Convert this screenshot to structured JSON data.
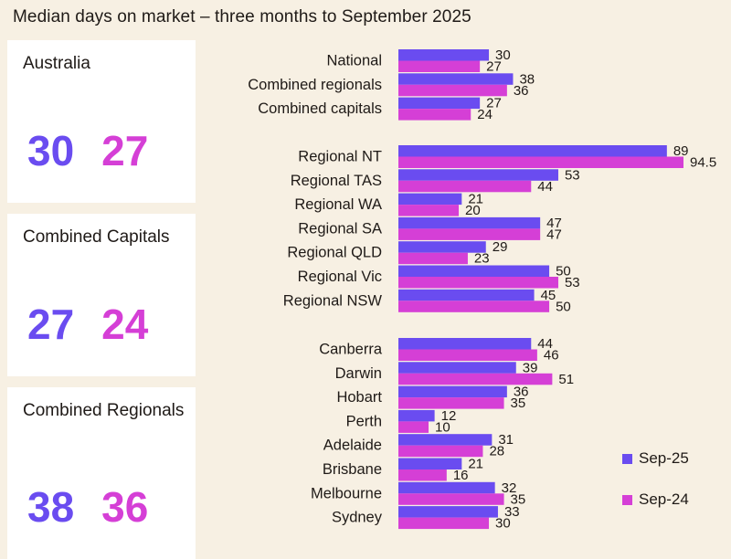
{
  "title": "Median days on market – three months to September 2025",
  "colors": {
    "sep25": "#6a4cf0",
    "sep24": "#d53fd6"
  },
  "cards": [
    {
      "label": "Australia",
      "sep25": "30",
      "sep24": "27"
    },
    {
      "label": "Combined Capitals",
      "sep25": "27",
      "sep24": "24"
    },
    {
      "label": "Combined Regionals",
      "sep25": "38",
      "sep24": "36"
    }
  ],
  "legend": [
    {
      "name": "Sep-25",
      "color": "#6a4cf0"
    },
    {
      "name": "Sep-24",
      "color": "#d53fd6"
    }
  ],
  "chart_data": {
    "type": "bar",
    "orientation": "horizontal",
    "title": "Median days on market – three months to September 2025",
    "legend_position": "bottom-right",
    "grid": false,
    "groups": [
      [
        "National",
        "Combined regionals",
        "Combined capitals"
      ],
      [
        "Regional NT",
        "Regional TAS",
        "Regional WA",
        "Regional SA",
        "Regional QLD",
        "Regional Vic",
        "Regional NSW"
      ],
      [
        "Canberra",
        "Darwin",
        "Hobart",
        "Perth",
        "Adelaide",
        "Brisbane",
        "Melbourne",
        "Sydney"
      ]
    ],
    "categories": [
      "National",
      "Combined regionals",
      "Combined capitals",
      "Regional NT",
      "Regional TAS",
      "Regional WA",
      "Regional SA",
      "Regional QLD",
      "Regional Vic",
      "Regional NSW",
      "Canberra",
      "Darwin",
      "Hobart",
      "Perth",
      "Adelaide",
      "Brisbane",
      "Melbourne",
      "Sydney"
    ],
    "series": [
      {
        "name": "Sep-25",
        "values": [
          30,
          38,
          27,
          89,
          53,
          21,
          47,
          29,
          50,
          45,
          44,
          39,
          36,
          12,
          31,
          21,
          32,
          33
        ]
      },
      {
        "name": "Sep-24",
        "values": [
          27,
          36,
          24,
          94.5,
          44,
          20,
          47,
          23,
          53,
          50,
          46,
          51,
          35,
          10,
          28,
          16,
          35,
          30
        ]
      }
    ],
    "xlim": [
      0,
      94.5
    ]
  }
}
